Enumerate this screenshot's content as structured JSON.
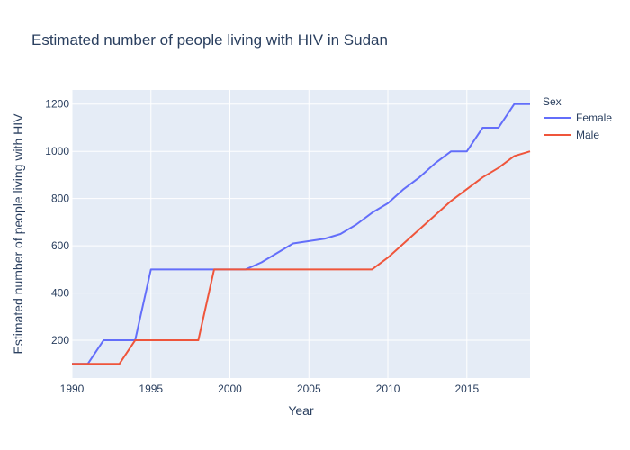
{
  "chart_data": {
    "type": "line",
    "title": "Estimated number of people living with HIV in Sudan",
    "xlabel": "Year",
    "ylabel": "Estimated number of people living with HIV",
    "xlim": [
      1990,
      2019
    ],
    "ylim": [
      40,
      1260
    ],
    "xticks": [
      1990,
      1995,
      2000,
      2005,
      2010,
      2015
    ],
    "yticks": [
      200,
      400,
      600,
      800,
      1000,
      1200
    ],
    "grid": true,
    "legend": {
      "title": "Sex",
      "placement": "top-right"
    },
    "x": [
      1990,
      1991,
      1992,
      1993,
      1994,
      1995,
      1996,
      1997,
      1998,
      1999,
      2000,
      2001,
      2002,
      2003,
      2004,
      2005,
      2006,
      2007,
      2008,
      2009,
      2010,
      2011,
      2012,
      2013,
      2014,
      2015,
      2016,
      2017,
      2018,
      2019
    ],
    "series": [
      {
        "name": "Female",
        "color": "#636efa",
        "values": [
          100,
          100,
          200,
          200,
          200,
          500,
          500,
          500,
          500,
          500,
          500,
          500,
          530,
          570,
          610,
          620,
          630,
          650,
          690,
          740,
          780,
          840,
          890,
          950,
          1000,
          1000,
          1100,
          1100,
          1200,
          1200
        ]
      },
      {
        "name": "Male",
        "color": "#ef553b",
        "values": [
          100,
          100,
          100,
          100,
          200,
          200,
          200,
          200,
          200,
          500,
          500,
          500,
          500,
          500,
          500,
          500,
          500,
          500,
          500,
          500,
          550,
          610,
          670,
          730,
          790,
          840,
          890,
          930,
          980,
          1000
        ]
      }
    ]
  },
  "colors": {
    "plot_background": "#e5ecf6",
    "grid": "#ffffff",
    "text": "#2a3f5f"
  }
}
